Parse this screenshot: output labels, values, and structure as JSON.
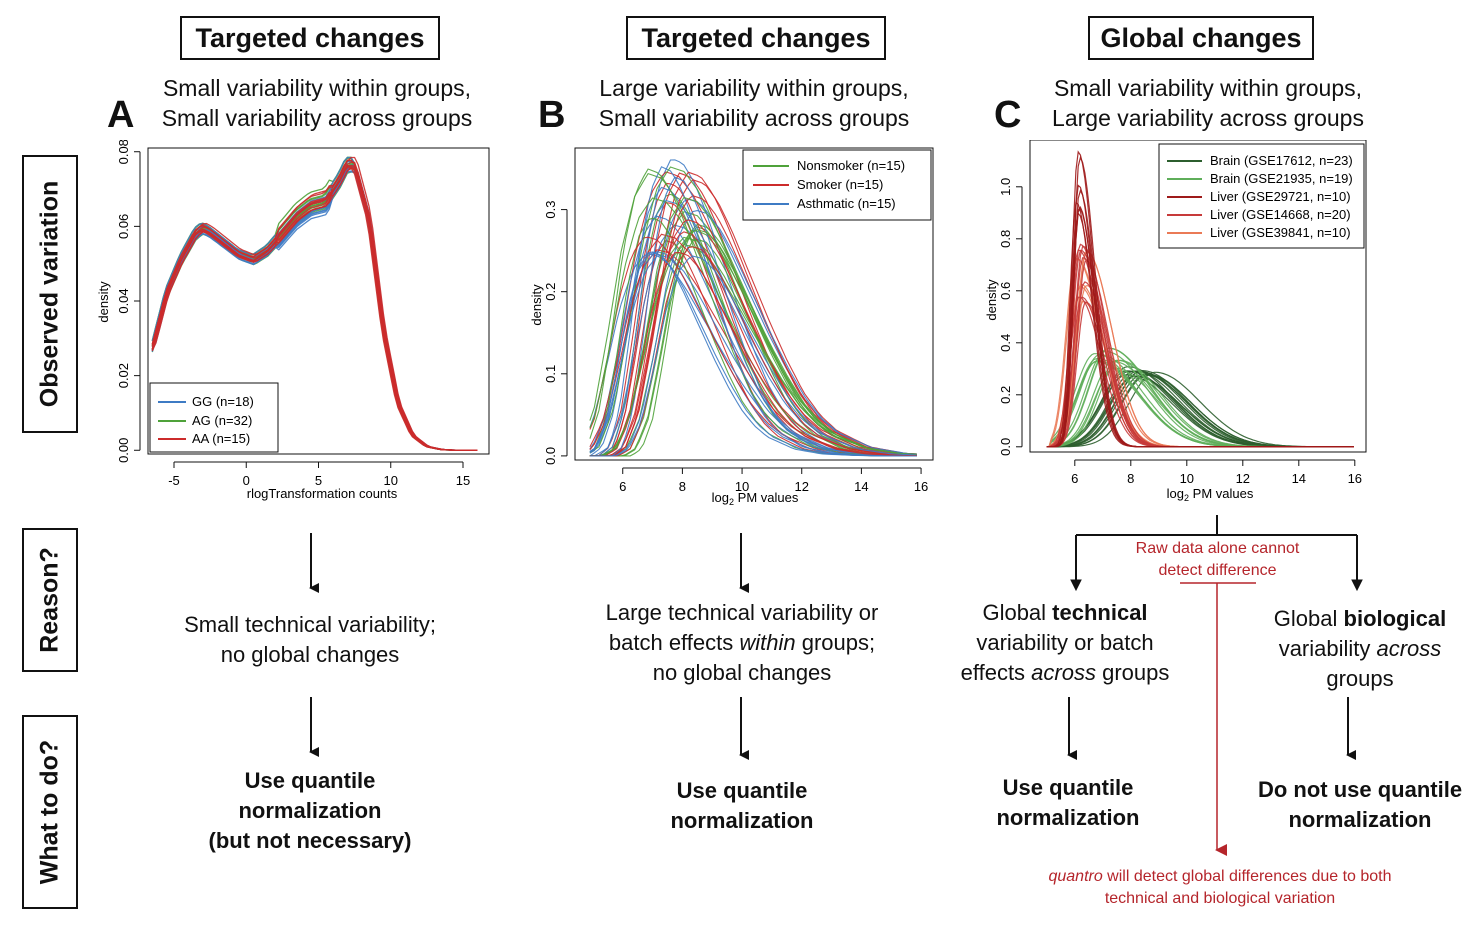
{
  "columns": [
    {
      "header": "Targeted changes",
      "subtitle_l1": "Small variability within groups,",
      "subtitle_l2": "Small variability across groups",
      "panel": "A"
    },
    {
      "header": "Targeted changes",
      "subtitle_l1": "Large variability within groups,",
      "subtitle_l2": "Small variability across groups",
      "panel": "B"
    },
    {
      "header": "Global changes",
      "subtitle_l1": "Small variability within groups,",
      "subtitle_l2": "Large variability across groups",
      "panel": "C"
    }
  ],
  "row_labels": {
    "observed": "Observed variation",
    "reason": "Reason?",
    "todo": "What to do?"
  },
  "reasons": {
    "a": {
      "l1": "Small technical variability;",
      "l2": "no global changes"
    },
    "b": {
      "l1": "Large technical variability or",
      "l2_pre": "batch effects ",
      "l2_em": "within",
      "l2_post": " groups;",
      "l3": "no global changes"
    },
    "c_left": {
      "pre": "Global ",
      "bold": "technical",
      "l2": "variability or batch",
      "l3_pre": "effects ",
      "l3_em": "across",
      "l3_post": " groups"
    },
    "c_right": {
      "pre": "Global ",
      "bold": "biological",
      "l2_pre": "variability ",
      "l2_em": "across",
      "l3": "groups"
    }
  },
  "actions": {
    "a": {
      "l1": "Use quantile",
      "l2": "normalization",
      "l3": "(but not necessary)"
    },
    "b": {
      "l1": "Use quantile",
      "l2": "normalization"
    },
    "c_left": {
      "l1": "Use quantile",
      "l2": "normalization"
    },
    "c_right": {
      "l1": "Do not use quantile",
      "l2": "normalization"
    }
  },
  "annotations": {
    "raw_l1": "Raw data alone cannot",
    "raw_l2": "detect difference",
    "quantro_em": "quantro",
    "quantro_rest": " will detect global differences due to both",
    "quantro_l2": "technical and biological variation"
  },
  "colors": {
    "blue": "#3e7bc4",
    "green": "#4fa23a",
    "red": "#cc2b2b",
    "dark_red": "#b5252b"
  },
  "chart_data": [
    {
      "type": "line",
      "panel": "A",
      "xlabel": "rlogTransformation counts",
      "ylabel": "density",
      "xlim": [
        -6.8,
        16.8
      ],
      "ylim": [
        -0.001,
        0.081
      ],
      "xticks": [
        -5,
        0,
        5,
        10,
        15
      ],
      "yticks": [
        0.0,
        0.02,
        0.04,
        0.06,
        0.08
      ],
      "ytick_labels": [
        "0.00",
        "0.02",
        "0.04",
        "0.06",
        "0.08"
      ],
      "legend_position": "bottom-left",
      "series": [
        {
          "name": "GG (n=18)",
          "color": "#3e7bc4",
          "count": 18
        },
        {
          "name": "AG (n=32)",
          "color": "#4fa23a",
          "count": 32
        },
        {
          "name": "AA (n=15)",
          "color": "#cc2b2b",
          "count": 15
        }
      ],
      "curve_x": [
        -6.5,
        -5.5,
        -4.5,
        -3.5,
        -3,
        -2.5,
        -1.5,
        -0.5,
        0.5,
        1.5,
        2.5,
        3.5,
        4.5,
        5.5,
        6.5,
        7,
        7.5,
        8.5,
        9.5,
        10.5,
        11.5,
        12.5,
        13.5,
        14.5,
        15.5,
        16
      ],
      "curve_y": [
        0.027,
        0.042,
        0.051,
        0.058,
        0.0595,
        0.0585,
        0.0555,
        0.0525,
        0.051,
        0.0535,
        0.058,
        0.0625,
        0.0655,
        0.0665,
        0.0725,
        0.0765,
        0.0765,
        0.062,
        0.032,
        0.0125,
        0.004,
        0.001,
        0.0002,
        0.0,
        0.0,
        0.0
      ]
    },
    {
      "type": "line",
      "panel": "B",
      "xlabel": "log2 PM values",
      "ylabel": "density",
      "xlim": [
        4.4,
        16.4
      ],
      "ylim": [
        -0.005,
        0.375
      ],
      "xticks": [
        6,
        8,
        10,
        12,
        14,
        16
      ],
      "yticks": [
        0.0,
        0.1,
        0.2,
        0.3
      ],
      "ytick_labels": [
        "0.0",
        "0.1",
        "0.2",
        "0.3"
      ],
      "legend_position": "top-right",
      "series": [
        {
          "name": "Nonsmoker (n=15)",
          "color": "#4fa23a",
          "count": 15
        },
        {
          "name": "Smoker (n=15)",
          "color": "#cc2b2b",
          "count": 15
        },
        {
          "name": "Asthmatic (n=15)",
          "color": "#3e7bc4",
          "count": 15
        }
      ],
      "curve_x": [
        5.2,
        5.6,
        6.0,
        6.4,
        6.8,
        7.2,
        7.6,
        8.0,
        8.4,
        8.8,
        9.2,
        9.6,
        10.0,
        10.5,
        11.0,
        11.5,
        12,
        13,
        14,
        15,
        16
      ],
      "curve_y": [
        0.0,
        0.01,
        0.05,
        0.13,
        0.22,
        0.28,
        0.305,
        0.3,
        0.28,
        0.25,
        0.215,
        0.18,
        0.145,
        0.105,
        0.07,
        0.045,
        0.028,
        0.01,
        0.003,
        0.001,
        0.0
      ]
    },
    {
      "type": "line",
      "panel": "C",
      "xlabel": "log2 PM values",
      "ylabel": "density",
      "xlim": [
        4.4,
        16.4
      ],
      "ylim": [
        -0.02,
        1.18
      ],
      "xticks": [
        6,
        8,
        10,
        12,
        14,
        16
      ],
      "yticks": [
        0.0,
        0.2,
        0.4,
        0.6,
        0.8,
        1.0
      ],
      "ytick_labels": [
        "0.0",
        "0.2",
        "0.4",
        "0.6",
        "0.8",
        "1.0"
      ],
      "legend_position": "top-right",
      "series": [
        {
          "name": "Brain (GSE17612, n=23)",
          "color": "#2c5e2e",
          "count": 23
        },
        {
          "name": "Brain (GSE21935, n=19)",
          "color": "#5fae5a",
          "count": 19
        },
        {
          "name": "Liver (GSE29721, n=10)",
          "color": "#9e1a1a",
          "count": 10
        },
        {
          "name": "Liver (GSE14668, n=20)",
          "color": "#c73a3a",
          "count": 20
        },
        {
          "name": "Liver (GSE39841, n=10)",
          "color": "#ea7a56",
          "count": 10
        }
      ]
    }
  ]
}
